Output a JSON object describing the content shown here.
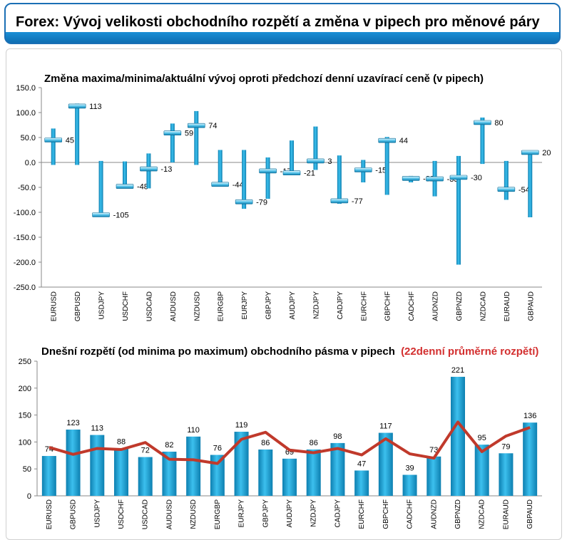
{
  "header": {
    "title": "Forex: Vývoj velikosti obchodního rozpětí a změna v pipech pro měnové páry"
  },
  "colors": {
    "bar": "#1aa3d9",
    "bar_dark": "#0d7fb0",
    "avg_line": "#c0392b",
    "accent_title": "#d32f2f",
    "header_blue": "#1a6fb5"
  },
  "chart_data": [
    {
      "type": "bar",
      "subtype": "range-marker",
      "title": "Změna maxima/minima/aktuální vývoj oproti předchozí denní uzavírací ceně (v pipech)",
      "categories": [
        "EURUSD",
        "GBPUSD",
        "USDJPY",
        "USDCHF",
        "USDCAD",
        "AUDUSD",
        "NZDUSD",
        "EURGBP",
        "EURJPY",
        "GBPJPY",
        "AUDJPY",
        "NZDJPY",
        "CADJPY",
        "EURCHF",
        "GBPCHF",
        "CADCHF",
        "AUDNZD",
        "GBPNZD",
        "NZDCAD",
        "EURAUD",
        "GBPAUD"
      ],
      "high": [
        68,
        118,
        3,
        2,
        18,
        78,
        103,
        25,
        25,
        10,
        44,
        72,
        14,
        5,
        51,
        -27,
        3,
        13,
        90,
        3,
        22
      ],
      "low": [
        -5,
        -5,
        -107,
        -48,
        -52,
        0,
        -5,
        -47,
        -93,
        -73,
        -20,
        -15,
        -83,
        -40,
        -65,
        -40,
        -68,
        -205,
        -3,
        -75,
        -110
      ],
      "current": [
        45,
        113,
        -105,
        -48,
        -13,
        59,
        74,
        -44,
        -79,
        -17,
        -21,
        3,
        -77,
        -15,
        44,
        -32,
        -33,
        -30,
        80,
        -54,
        20
      ],
      "current_labels": [
        "45",
        "113",
        "-105",
        "-48",
        "-13",
        "59",
        "74",
        "-44",
        "-79",
        "-17",
        "-21",
        "3",
        "-77",
        "-15",
        "44",
        "-32",
        "-33",
        "-30",
        "80",
        "-54",
        "20"
      ],
      "ylim": [
        -250,
        150
      ],
      "yticks": [
        "150.0",
        "100.0",
        "50.0",
        "0.0",
        "-50.0",
        "-100.0",
        "-150.0",
        "-200.0",
        "-250.0"
      ],
      "ytick_values": [
        150,
        100,
        50,
        0,
        -50,
        -100,
        -150,
        -200,
        -250
      ]
    },
    {
      "type": "bar",
      "title": "Dnešní rozpětí (od minima po maximum) obchodního pásma v pipech",
      "title_accent": "(22denní průměrné rozpětí)",
      "categories": [
        "EURUSD",
        "GBPUSD",
        "USDJPY",
        "USDCHF",
        "USDCAD",
        "AUDUSD",
        "NZDUSD",
        "EURGBP",
        "EURJPY",
        "GBPJPY",
        "AUDJPY",
        "NZDJPY",
        "CADJPY",
        "EURCHF",
        "GBPCHF",
        "CADCHF",
        "AUDNZD",
        "GBPNZD",
        "NZDCAD",
        "EURAUD",
        "GBPAUD"
      ],
      "values": [
        74,
        123,
        113,
        88,
        72,
        82,
        110,
        76,
        119,
        86,
        69,
        86,
        98,
        47,
        117,
        39,
        73,
        221,
        95,
        79,
        136
      ],
      "value_labels": [
        "74",
        "123",
        "113",
        "88",
        "72",
        "82",
        "110",
        "76",
        "119",
        "86",
        "69",
        "86",
        "98",
        "47",
        "117",
        "39",
        "73",
        "221",
        "95",
        "79",
        "136"
      ],
      "average": [
        90,
        77,
        88,
        86,
        99,
        68,
        67,
        60,
        105,
        118,
        85,
        80,
        88,
        76,
        106,
        78,
        70,
        137,
        82,
        111,
        127
      ],
      "ylim": [
        0,
        250
      ],
      "yticks": [
        "250",
        "200",
        "150",
        "100",
        "50",
        "0"
      ],
      "ytick_values": [
        250,
        200,
        150,
        100,
        50,
        0
      ]
    }
  ]
}
